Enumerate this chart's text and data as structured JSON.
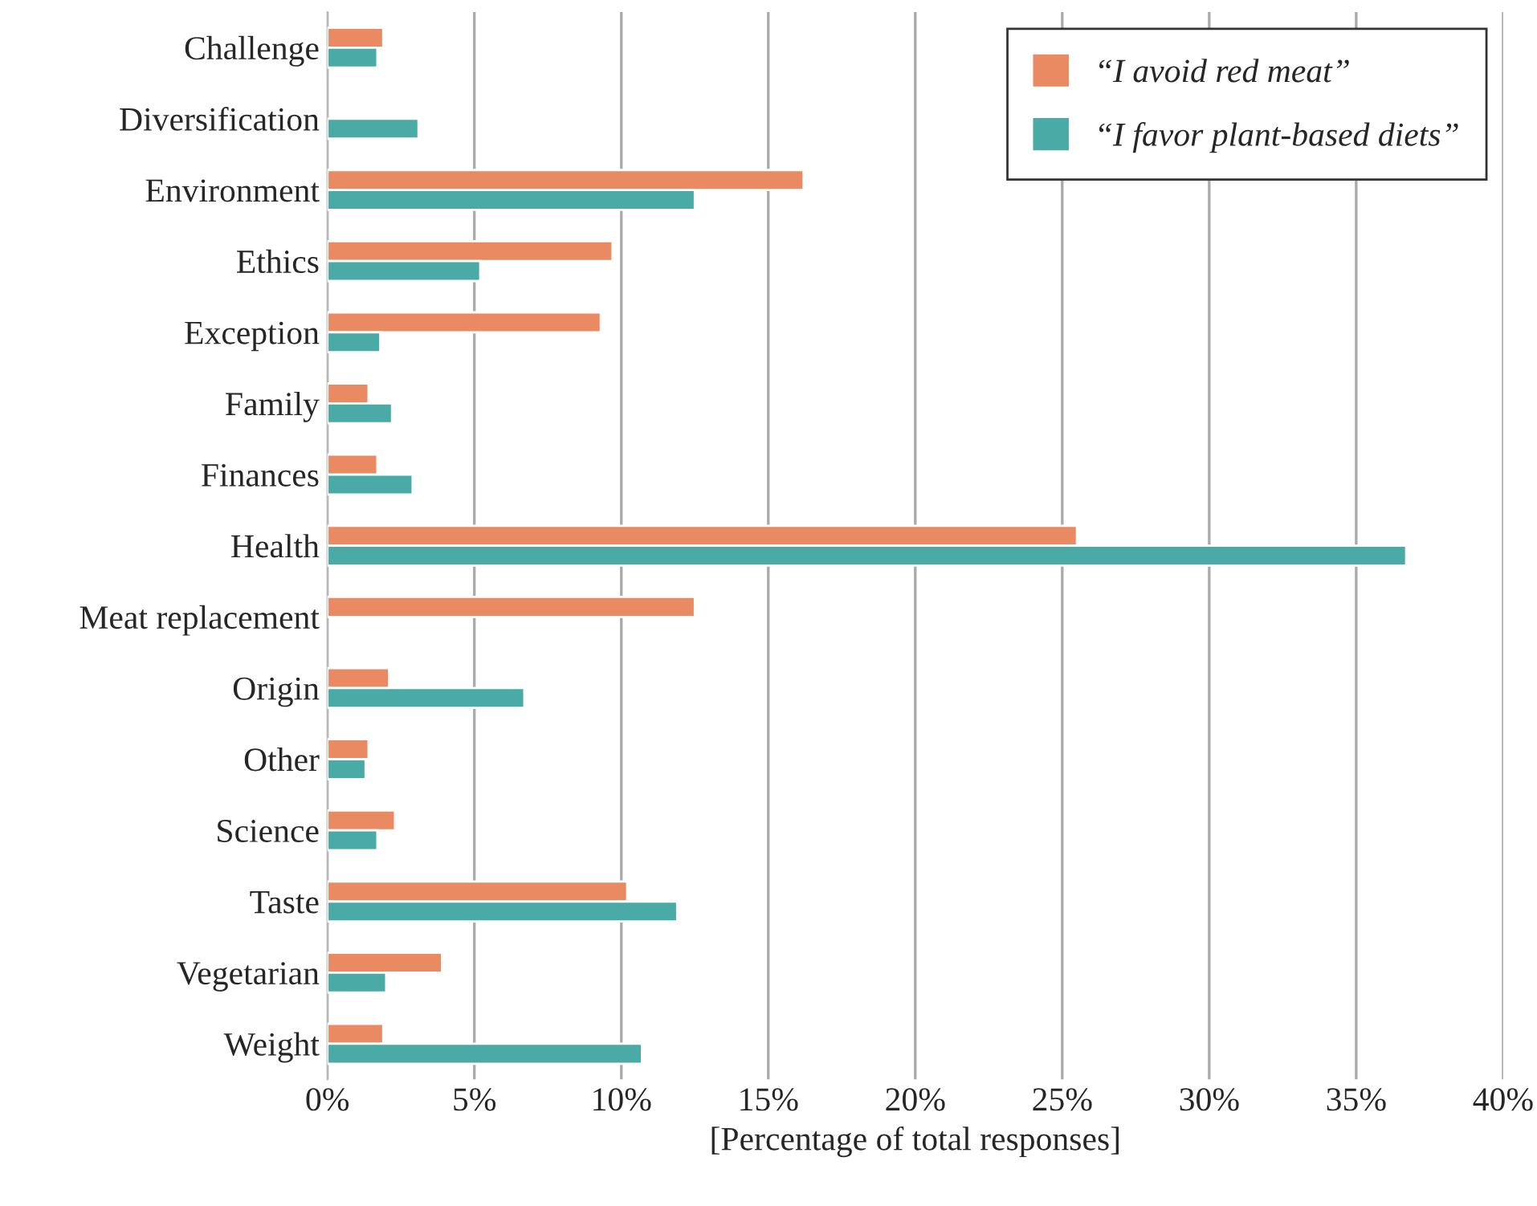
{
  "chart_data": {
    "type": "bar",
    "orientation": "horizontal",
    "categories": [
      "Challenge",
      "Diversification",
      "Environment",
      "Ethics",
      "Exception",
      "Family",
      "Finances",
      "Health",
      "Meat replacement",
      "Origin",
      "Other",
      "Science",
      "Taste",
      "Vegetarian",
      "Weight"
    ],
    "series": [
      {
        "name": "“I avoid red meat”",
        "color": "#e98a62",
        "values": [
          1.9,
          null,
          16.2,
          9.7,
          9.3,
          1.4,
          1.7,
          25.5,
          12.5,
          2.1,
          1.4,
          2.3,
          10.2,
          3.9,
          1.9
        ]
      },
      {
        "name": "“I favor plant-based diets”",
        "color": "#4aaba6",
        "values": [
          1.7,
          3.1,
          12.5,
          5.2,
          1.8,
          2.2,
          2.9,
          36.7,
          null,
          6.7,
          1.3,
          1.7,
          11.9,
          2.0,
          10.7
        ]
      }
    ],
    "xlabel": "[Percentage of total responses]",
    "xlim": [
      0,
      40
    ],
    "xticks": [
      {
        "value": 0,
        "label": "0%"
      },
      {
        "value": 5,
        "label": "5%"
      },
      {
        "value": 10,
        "label": "10%"
      },
      {
        "value": 15,
        "label": "15%"
      },
      {
        "value": 20,
        "label": "20%"
      },
      {
        "value": 25,
        "label": "25%"
      },
      {
        "value": 30,
        "label": "30%"
      },
      {
        "value": 35,
        "label": "35%"
      },
      {
        "value": 40,
        "label": "40%"
      }
    ],
    "grid": "x",
    "legend": "top right"
  }
}
